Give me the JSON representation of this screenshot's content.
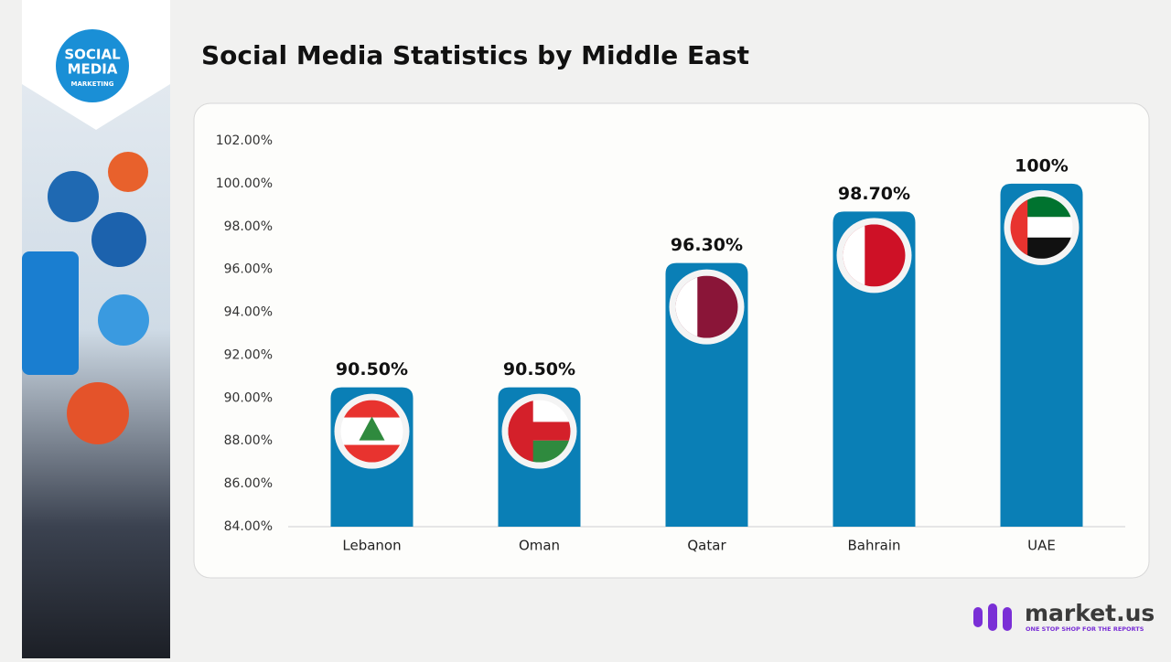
{
  "sidebar": {
    "badge_title_1": "SOCIAL",
    "badge_title_2": "MEDIA",
    "badge_subtitle": "MARKETING"
  },
  "branding": {
    "logo": "market.us",
    "tagline": "ONE STOP SHOP FOR THE REPORTS"
  },
  "chart_data": {
    "type": "bar",
    "title": "Social Media Statistics by Middle East",
    "categories": [
      "Lebanon",
      "Oman",
      "Qatar",
      "Bahrain",
      "UAE"
    ],
    "values": [
      90.5,
      90.5,
      96.3,
      98.7,
      100
    ],
    "value_labels": [
      "90.50%",
      "90.50%",
      "96.30%",
      "98.70%",
      "100%"
    ],
    "color": "#0a7fb6",
    "ylim": [
      84,
      102
    ],
    "yticks": [
      {
        "value": 84,
        "label": "84.00%"
      },
      {
        "value": 86,
        "label": "86.00%"
      },
      {
        "value": 88,
        "label": "88.00%"
      },
      {
        "value": 90,
        "label": "90.00%"
      },
      {
        "value": 92,
        "label": "92.00%"
      },
      {
        "value": 94,
        "label": "94.00%"
      },
      {
        "value": 96,
        "label": "96.00%"
      },
      {
        "value": 98,
        "label": "98.00%"
      },
      {
        "value": 100,
        "label": "100.00%"
      },
      {
        "value": 102,
        "label": "102.00%"
      }
    ],
    "grid": false
  }
}
